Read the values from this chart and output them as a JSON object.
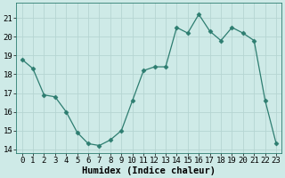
{
  "x": [
    0,
    1,
    2,
    3,
    4,
    5,
    6,
    7,
    8,
    9,
    10,
    11,
    12,
    13,
    14,
    15,
    16,
    17,
    18,
    19,
    20,
    21,
    22,
    23
  ],
  "y": [
    18.8,
    18.3,
    16.9,
    16.8,
    16.0,
    14.9,
    14.3,
    14.2,
    14.5,
    15.0,
    16.6,
    18.2,
    18.4,
    18.4,
    20.5,
    20.2,
    21.2,
    20.3,
    19.8,
    20.5,
    20.2,
    19.8,
    16.6,
    14.3
  ],
  "xlabel": "Humidex (Indice chaleur)",
  "ylim": [
    13.8,
    21.8
  ],
  "xlim": [
    -0.5,
    23.5
  ],
  "yticks": [
    14,
    15,
    16,
    17,
    18,
    19,
    20,
    21
  ],
  "xticks": [
    0,
    1,
    2,
    3,
    4,
    5,
    6,
    7,
    8,
    9,
    10,
    11,
    12,
    13,
    14,
    15,
    16,
    17,
    18,
    19,
    20,
    21,
    22,
    23
  ],
  "line_color": "#2d7d70",
  "marker": "D",
  "marker_size": 2.5,
  "bg_color": "#ceeae7",
  "grid_color": "#b5d5d2",
  "tick_fontsize": 6.5,
  "xlabel_fontsize": 7.5
}
